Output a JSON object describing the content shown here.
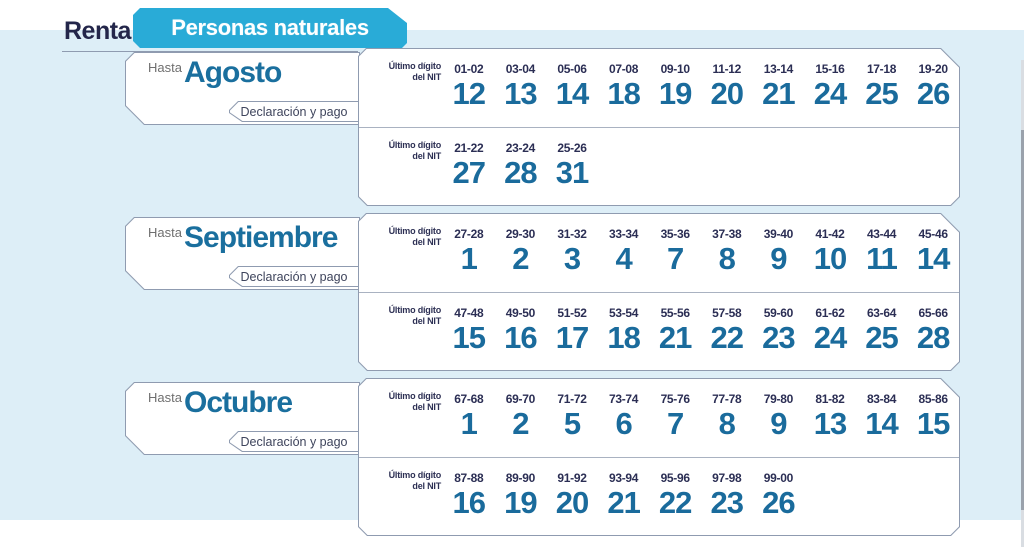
{
  "header": {
    "title_prefix": "Renta -",
    "tab_label": "Personas naturales"
  },
  "labels": {
    "hasta": "Hasta",
    "declaracion": "Declaración y pago",
    "nit_line1": "Último dígito",
    "nit_line2": "del NIT"
  },
  "colors": {
    "accent_cyan": "#29abd7",
    "teal": "#1a6f9e",
    "navy": "#23264a",
    "card_border": "#8f9bb0",
    "page_bg": "#ddeef7"
  },
  "sections": [
    {
      "month": "Agosto",
      "rows": [
        [
          {
            "range": "01-02",
            "day": "12"
          },
          {
            "range": "03-04",
            "day": "13"
          },
          {
            "range": "05-06",
            "day": "14"
          },
          {
            "range": "07-08",
            "day": "18"
          },
          {
            "range": "09-10",
            "day": "19"
          },
          {
            "range": "11-12",
            "day": "20"
          },
          {
            "range": "13-14",
            "day": "21"
          },
          {
            "range": "15-16",
            "day": "24"
          },
          {
            "range": "17-18",
            "day": "25"
          },
          {
            "range": "19-20",
            "day": "26"
          }
        ],
        [
          {
            "range": "21-22",
            "day": "27"
          },
          {
            "range": "23-24",
            "day": "28"
          },
          {
            "range": "25-26",
            "day": "31"
          }
        ]
      ]
    },
    {
      "month": "Septiembre",
      "rows": [
        [
          {
            "range": "27-28",
            "day": "1"
          },
          {
            "range": "29-30",
            "day": "2"
          },
          {
            "range": "31-32",
            "day": "3"
          },
          {
            "range": "33-34",
            "day": "4"
          },
          {
            "range": "35-36",
            "day": "7"
          },
          {
            "range": "37-38",
            "day": "8"
          },
          {
            "range": "39-40",
            "day": "9"
          },
          {
            "range": "41-42",
            "day": "10"
          },
          {
            "range": "43-44",
            "day": "11"
          },
          {
            "range": "45-46",
            "day": "14"
          }
        ],
        [
          {
            "range": "47-48",
            "day": "15"
          },
          {
            "range": "49-50",
            "day": "16"
          },
          {
            "range": "51-52",
            "day": "17"
          },
          {
            "range": "53-54",
            "day": "18"
          },
          {
            "range": "55-56",
            "day": "21"
          },
          {
            "range": "57-58",
            "day": "22"
          },
          {
            "range": "59-60",
            "day": "23"
          },
          {
            "range": "61-62",
            "day": "24"
          },
          {
            "range": "63-64",
            "day": "25"
          },
          {
            "range": "65-66",
            "day": "28"
          }
        ]
      ]
    },
    {
      "month": "Octubre",
      "rows": [
        [
          {
            "range": "67-68",
            "day": "1"
          },
          {
            "range": "69-70",
            "day": "2"
          },
          {
            "range": "71-72",
            "day": "5"
          },
          {
            "range": "73-74",
            "day": "6"
          },
          {
            "range": "75-76",
            "day": "7"
          },
          {
            "range": "77-78",
            "day": "8"
          },
          {
            "range": "79-80",
            "day": "9"
          },
          {
            "range": "81-82",
            "day": "13"
          },
          {
            "range": "83-84",
            "day": "14"
          },
          {
            "range": "85-86",
            "day": "15"
          }
        ],
        [
          {
            "range": "87-88",
            "day": "16"
          },
          {
            "range": "89-90",
            "day": "19"
          },
          {
            "range": "91-92",
            "day": "20"
          },
          {
            "range": "93-94",
            "day": "21"
          },
          {
            "range": "95-96",
            "day": "22"
          },
          {
            "range": "97-98",
            "day": "23"
          },
          {
            "range": "99-00",
            "day": "26"
          }
        ]
      ]
    }
  ]
}
